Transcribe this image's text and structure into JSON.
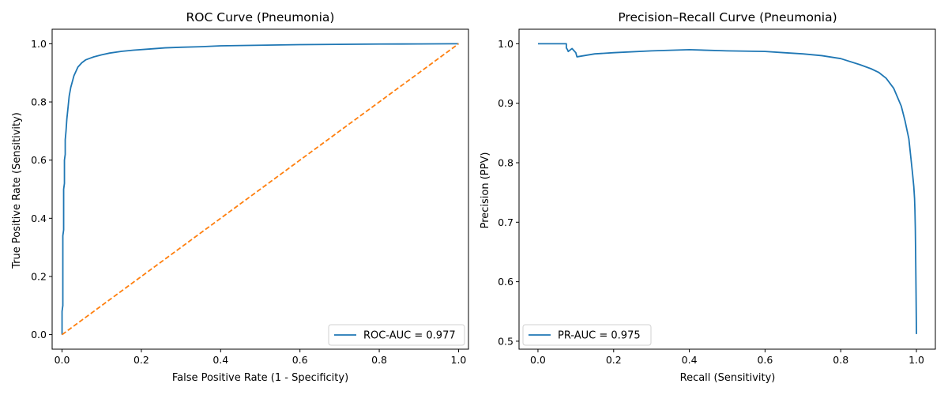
{
  "chart_data": [
    {
      "type": "line",
      "title": "ROC Curve (Pneumonia)",
      "xlabel": "False Positive Rate (1 - Specificity)",
      "ylabel": "True Positive Rate (Sensitivity)",
      "xlim": [
        -0.025,
        1.025
      ],
      "ylim": [
        -0.05,
        1.05
      ],
      "xticks": [
        0.0,
        0.2,
        0.4,
        0.6,
        0.8,
        1.0
      ],
      "xtick_labels": [
        "0.0",
        "0.2",
        "0.4",
        "0.6",
        "0.8",
        "1.0"
      ],
      "yticks": [
        0.0,
        0.2,
        0.4,
        0.6,
        0.8,
        1.0
      ],
      "ytick_labels": [
        "0.0",
        "0.2",
        "0.4",
        "0.6",
        "0.8",
        "1.0"
      ],
      "grid": false,
      "legend_position": "lower-right",
      "series": [
        {
          "name": "ROC-AUC = 0.977",
          "color": "#1f77b4",
          "style": "solid",
          "x": [
            0.0,
            0.0,
            0.002,
            0.002,
            0.004,
            0.004,
            0.006,
            0.006,
            0.008,
            0.008,
            0.01,
            0.012,
            0.015,
            0.018,
            0.022,
            0.026,
            0.03,
            0.035,
            0.04,
            0.05,
            0.06,
            0.07,
            0.08,
            0.1,
            0.12,
            0.15,
            0.18,
            0.22,
            0.26,
            0.3,
            0.35,
            0.4,
            0.5,
            0.6,
            0.7,
            0.8,
            0.9,
            1.0
          ],
          "y": [
            0.0,
            0.08,
            0.1,
            0.34,
            0.36,
            0.5,
            0.52,
            0.6,
            0.62,
            0.67,
            0.7,
            0.74,
            0.78,
            0.82,
            0.85,
            0.87,
            0.89,
            0.905,
            0.92,
            0.935,
            0.945,
            0.95,
            0.955,
            0.962,
            0.968,
            0.974,
            0.978,
            0.982,
            0.986,
            0.988,
            0.99,
            0.993,
            0.995,
            0.997,
            0.998,
            0.999,
            0.9995,
            1.0
          ]
        },
        {
          "name": "",
          "color": "#ff7f0e",
          "style": "dashed",
          "x": [
            0.0,
            1.0
          ],
          "y": [
            0.0,
            1.0
          ]
        }
      ]
    },
    {
      "type": "line",
      "title": "Precision–Recall Curve (Pneumonia)",
      "xlabel": "Recall (Sensitivity)",
      "ylabel": "Precision (PPV)",
      "xlim": [
        -0.05,
        1.05
      ],
      "ylim": [
        0.4866,
        1.0244
      ],
      "xticks": [
        0.0,
        0.2,
        0.4,
        0.6,
        0.8,
        1.0
      ],
      "xtick_labels": [
        "0.0",
        "0.2",
        "0.4",
        "0.6",
        "0.8",
        "1.0"
      ],
      "yticks": [
        0.5,
        0.6,
        0.7,
        0.8,
        0.9,
        1.0
      ],
      "ytick_labels": [
        "0.5",
        "0.6",
        "0.7",
        "0.8",
        "0.9",
        "1.0"
      ],
      "grid": false,
      "legend_position": "lower-left",
      "series": [
        {
          "name": "PR-AUC = 0.975",
          "color": "#1f77b4",
          "style": "solid",
          "x": [
            0.0,
            0.075,
            0.075,
            0.078,
            0.08,
            0.09,
            0.1,
            0.103,
            0.15,
            0.2,
            0.3,
            0.4,
            0.5,
            0.6,
            0.65,
            0.7,
            0.75,
            0.8,
            0.85,
            0.88,
            0.9,
            0.92,
            0.94,
            0.95,
            0.96,
            0.97,
            0.98,
            0.985,
            0.99,
            0.993,
            0.995,
            0.996,
            0.997,
            0.998,
            0.999,
            1.0
          ],
          "y": [
            1.0,
            1.0,
            0.993,
            0.99,
            0.987,
            0.992,
            0.985,
            0.978,
            0.983,
            0.985,
            0.988,
            0.99,
            0.988,
            0.987,
            0.985,
            0.983,
            0.98,
            0.975,
            0.965,
            0.958,
            0.952,
            0.942,
            0.925,
            0.91,
            0.895,
            0.87,
            0.84,
            0.81,
            0.78,
            0.76,
            0.74,
            0.72,
            0.69,
            0.64,
            0.58,
            0.512
          ]
        }
      ]
    }
  ]
}
